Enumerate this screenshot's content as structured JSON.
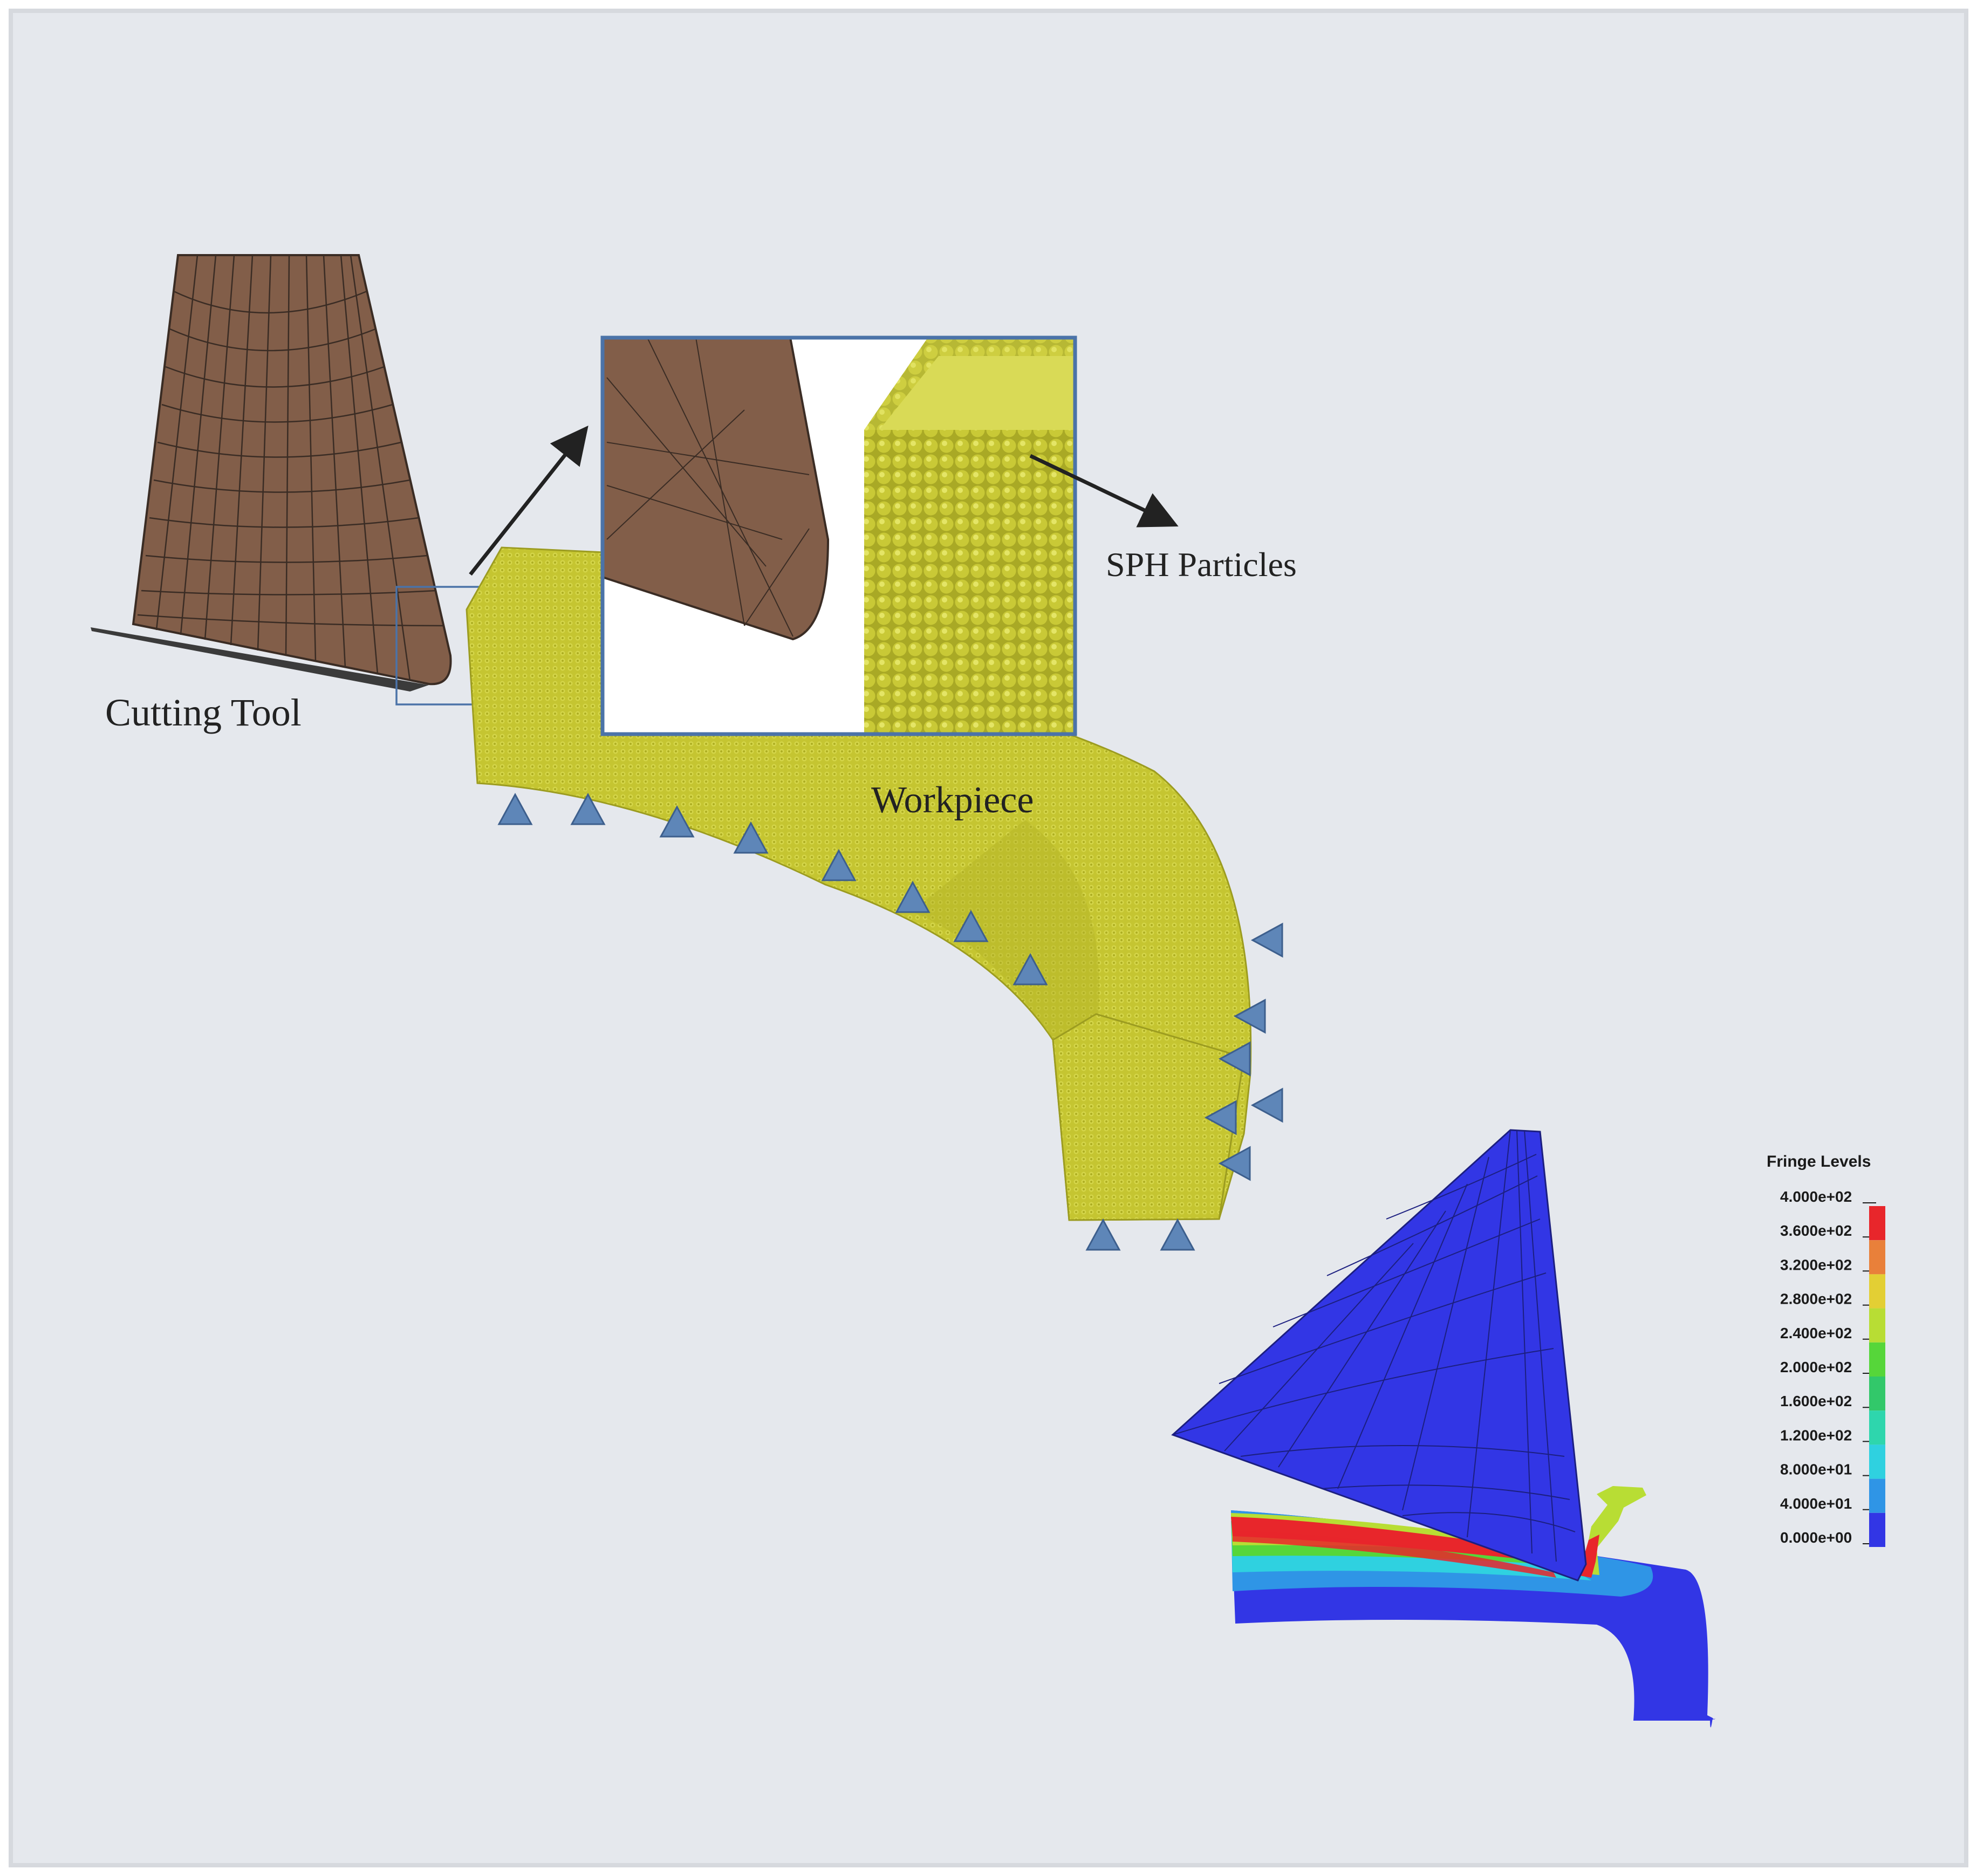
{
  "labels": {
    "cutting_tool": "Cutting  Tool",
    "sph_particles": "SPH Particles",
    "workpiece": "Workpiece"
  },
  "legend": {
    "title": "Fringe Levels",
    "levels": [
      "4.000e+02",
      "3.600e+02",
      "3.200e+02",
      "2.800e+02",
      "2.400e+02",
      "2.000e+02",
      "1.600e+02",
      "1.200e+02",
      "8.000e+01",
      "4.000e+01",
      "0.000e+00"
    ],
    "colors": [
      "#e8262b",
      "#e9803a",
      "#e3cf34",
      "#b8dd34",
      "#56d63a",
      "#32c86a",
      "#2ed6ad",
      "#2fd1e0",
      "#2f95e6",
      "#3236e5"
    ]
  },
  "colors": {
    "background": "#e5e8ed",
    "frame": "#f3f4f6",
    "tool": "#825e49",
    "workpiece": "#c5c531",
    "constraint": "#5e86b8",
    "zoom_border": "#4b73a8",
    "result_blue": "#3236e5"
  }
}
